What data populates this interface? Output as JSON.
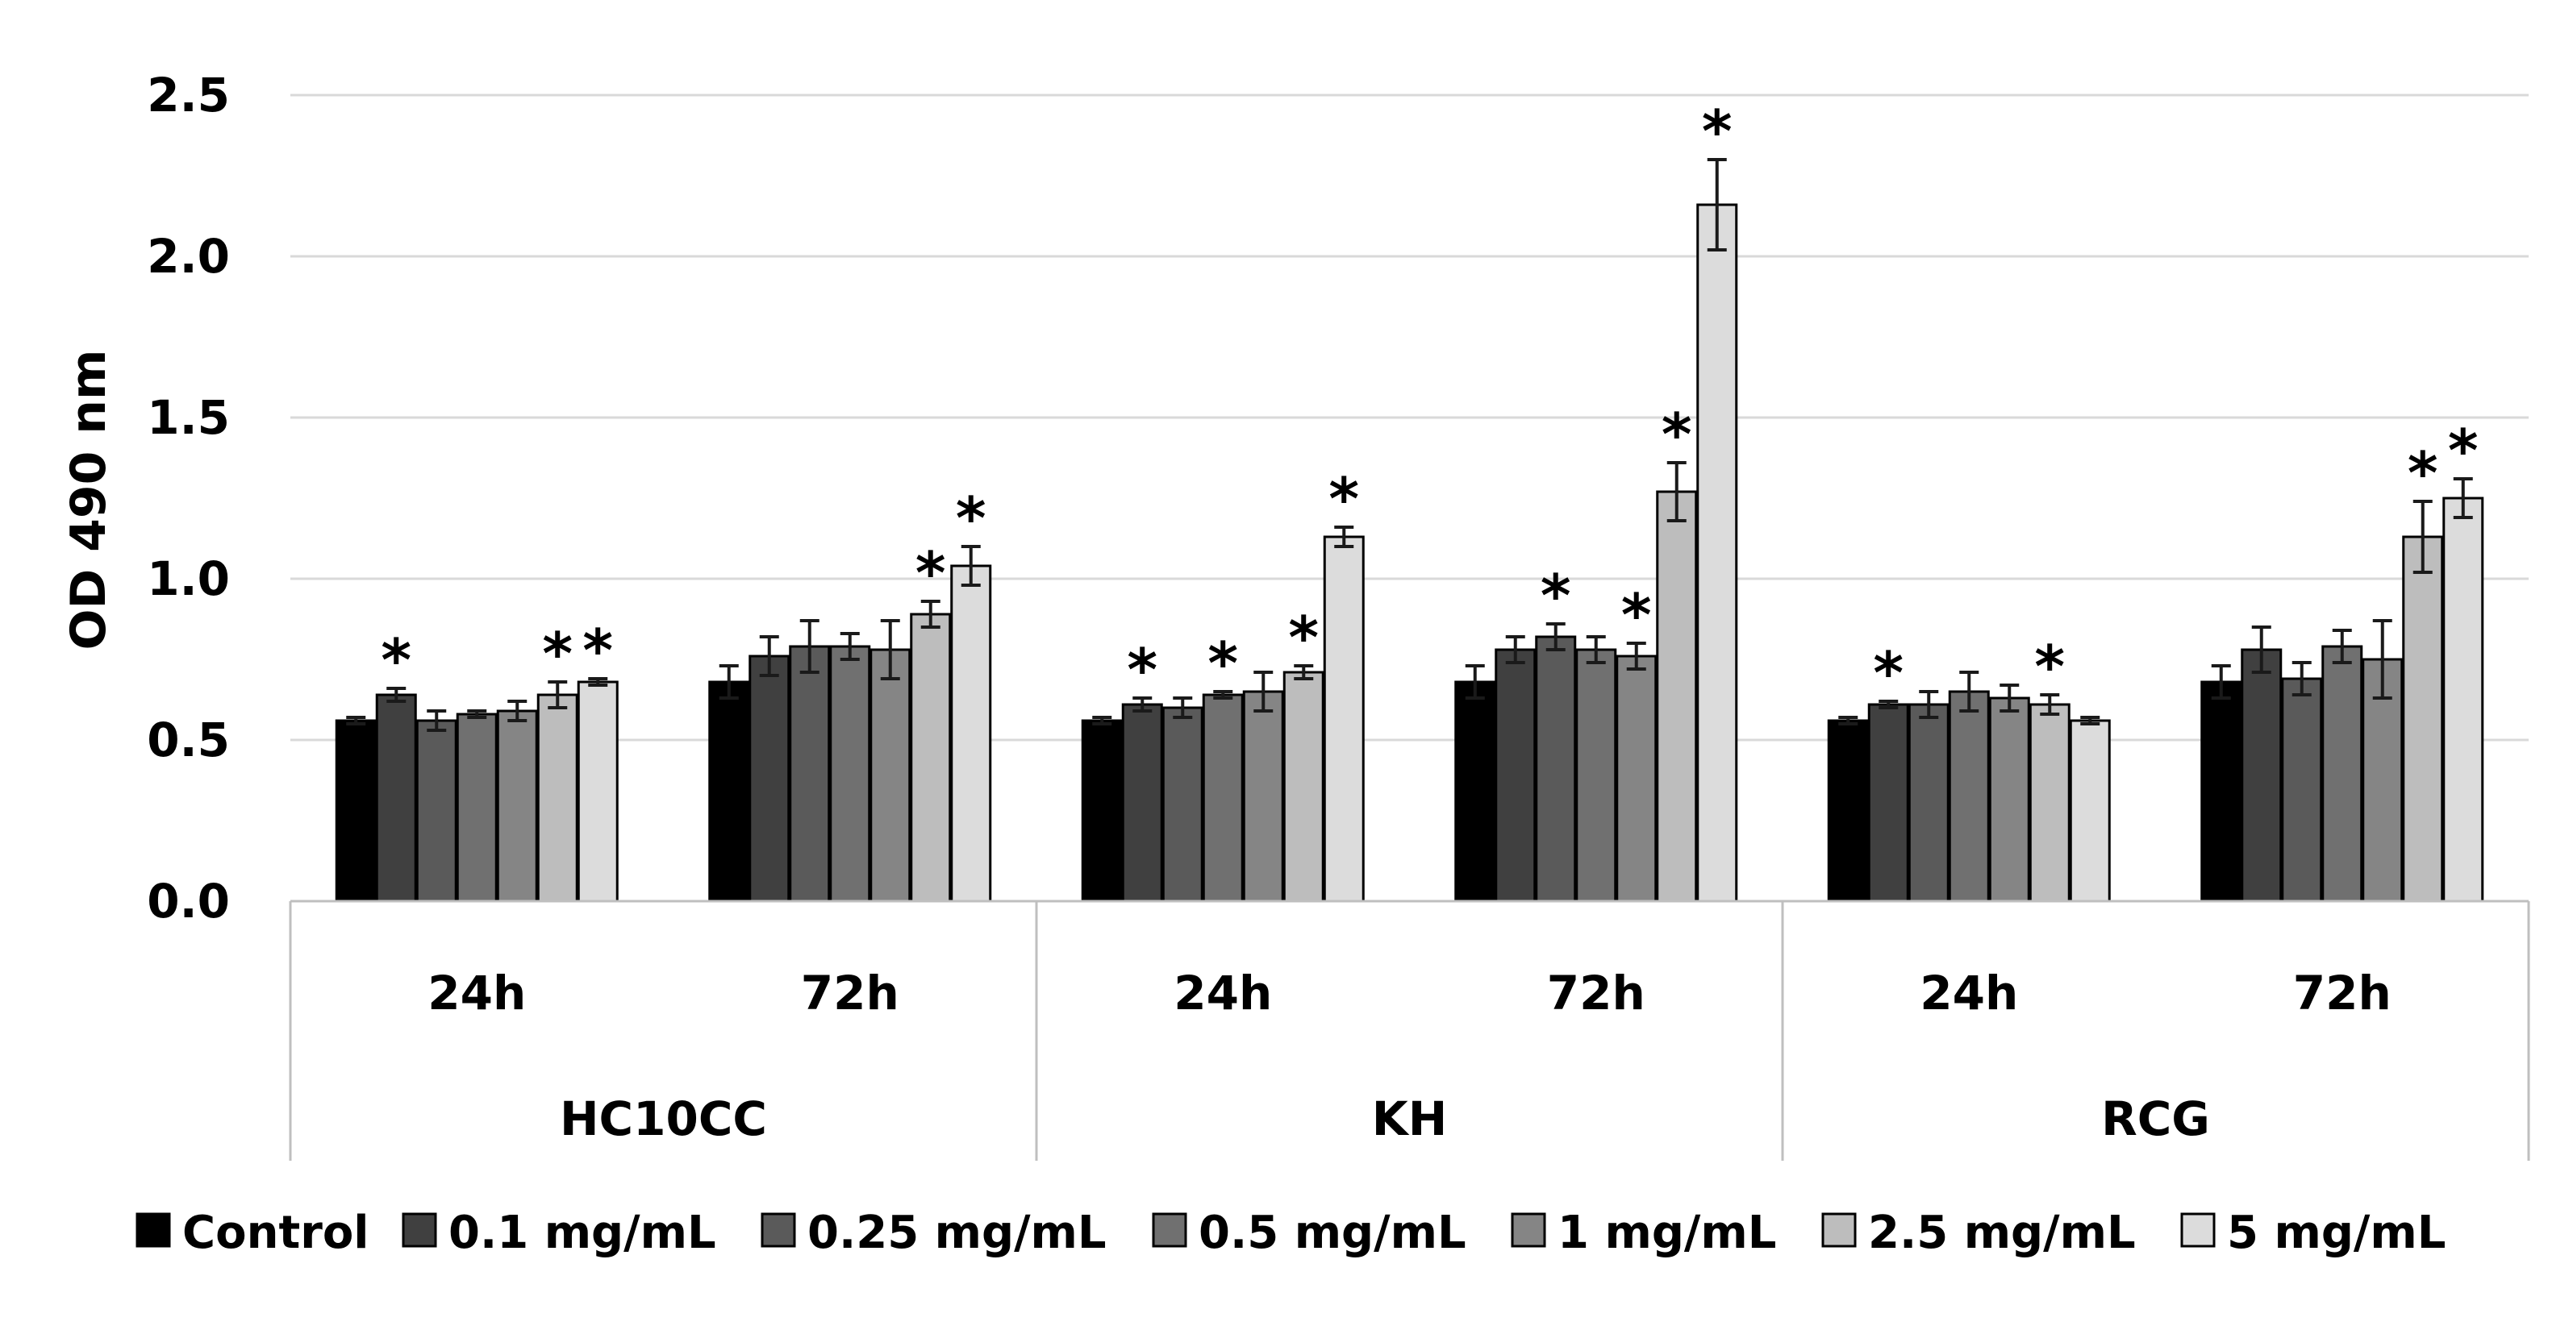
{
  "chart_data": {
    "type": "bar",
    "title": "",
    "xlabel": "",
    "ylabel": "OD 490 nm",
    "ylim": [
      0,
      2.5
    ],
    "yticks": [
      0.0,
      0.5,
      1.0,
      1.5,
      2.0,
      2.5
    ],
    "ytick_labels": [
      "0.0",
      "0.5",
      "1.0",
      "1.5",
      "2.0",
      "2.5"
    ],
    "grid": true,
    "legend_position": "bottom",
    "groups": [
      {
        "label": "HC10CC",
        "times": [
          "24h",
          "72h"
        ]
      },
      {
        "label": "KH",
        "times": [
          "24h",
          "72h"
        ]
      },
      {
        "label": "RCG",
        "times": [
          "24h",
          "72h"
        ]
      }
    ],
    "categories": [
      "HC10CC 24h",
      "HC10CC 72h",
      "KH 24h",
      "KH 72h",
      "RCG 24h",
      "RCG 72h"
    ],
    "significance_marker": "*",
    "series": [
      {
        "name": "Control",
        "color": "#000000",
        "values": [
          0.56,
          0.68,
          0.56,
          0.68,
          0.56,
          0.68
        ],
        "errors": [
          0.01,
          0.05,
          0.01,
          0.05,
          0.01,
          0.05
        ],
        "significant": [
          false,
          false,
          false,
          false,
          false,
          false
        ]
      },
      {
        "name": "0.1 mg/mL",
        "color": "#404040",
        "values": [
          0.64,
          0.76,
          0.61,
          0.78,
          0.61,
          0.78
        ],
        "errors": [
          0.02,
          0.06,
          0.02,
          0.04,
          0.01,
          0.07
        ],
        "significant": [
          true,
          false,
          true,
          false,
          true,
          false
        ]
      },
      {
        "name": "0.25 mg/mL",
        "color": "#5a5a5a",
        "values": [
          0.56,
          0.79,
          0.6,
          0.82,
          0.61,
          0.69
        ],
        "errors": [
          0.03,
          0.08,
          0.03,
          0.04,
          0.04,
          0.05
        ],
        "significant": [
          false,
          false,
          false,
          true,
          false,
          false
        ]
      },
      {
        "name": "0.5 mg/mL",
        "color": "#707070",
        "values": [
          0.58,
          0.79,
          0.64,
          0.78,
          0.65,
          0.79
        ],
        "errors": [
          0.01,
          0.04,
          0.01,
          0.04,
          0.06,
          0.05
        ],
        "significant": [
          false,
          false,
          true,
          false,
          false,
          false
        ]
      },
      {
        "name": "1 mg/mL",
        "color": "#858585",
        "values": [
          0.59,
          0.78,
          0.65,
          0.76,
          0.63,
          0.75
        ],
        "errors": [
          0.03,
          0.09,
          0.06,
          0.04,
          0.04,
          0.12
        ],
        "significant": [
          false,
          false,
          false,
          true,
          false,
          false
        ]
      },
      {
        "name": "2.5 mg/mL",
        "color": "#bdbdbd",
        "values": [
          0.64,
          0.89,
          0.71,
          1.27,
          0.61,
          1.13
        ],
        "errors": [
          0.04,
          0.04,
          0.02,
          0.09,
          0.03,
          0.11
        ],
        "significant": [
          true,
          true,
          true,
          true,
          true,
          true
        ]
      },
      {
        "name": "5 mg/mL",
        "color": "#dcdcdc",
        "values": [
          0.68,
          1.04,
          1.13,
          2.16,
          0.56,
          1.25
        ],
        "errors": [
          0.01,
          0.06,
          0.03,
          0.14,
          0.01,
          0.06
        ],
        "significant": [
          true,
          true,
          true,
          true,
          false,
          true
        ]
      }
    ]
  }
}
